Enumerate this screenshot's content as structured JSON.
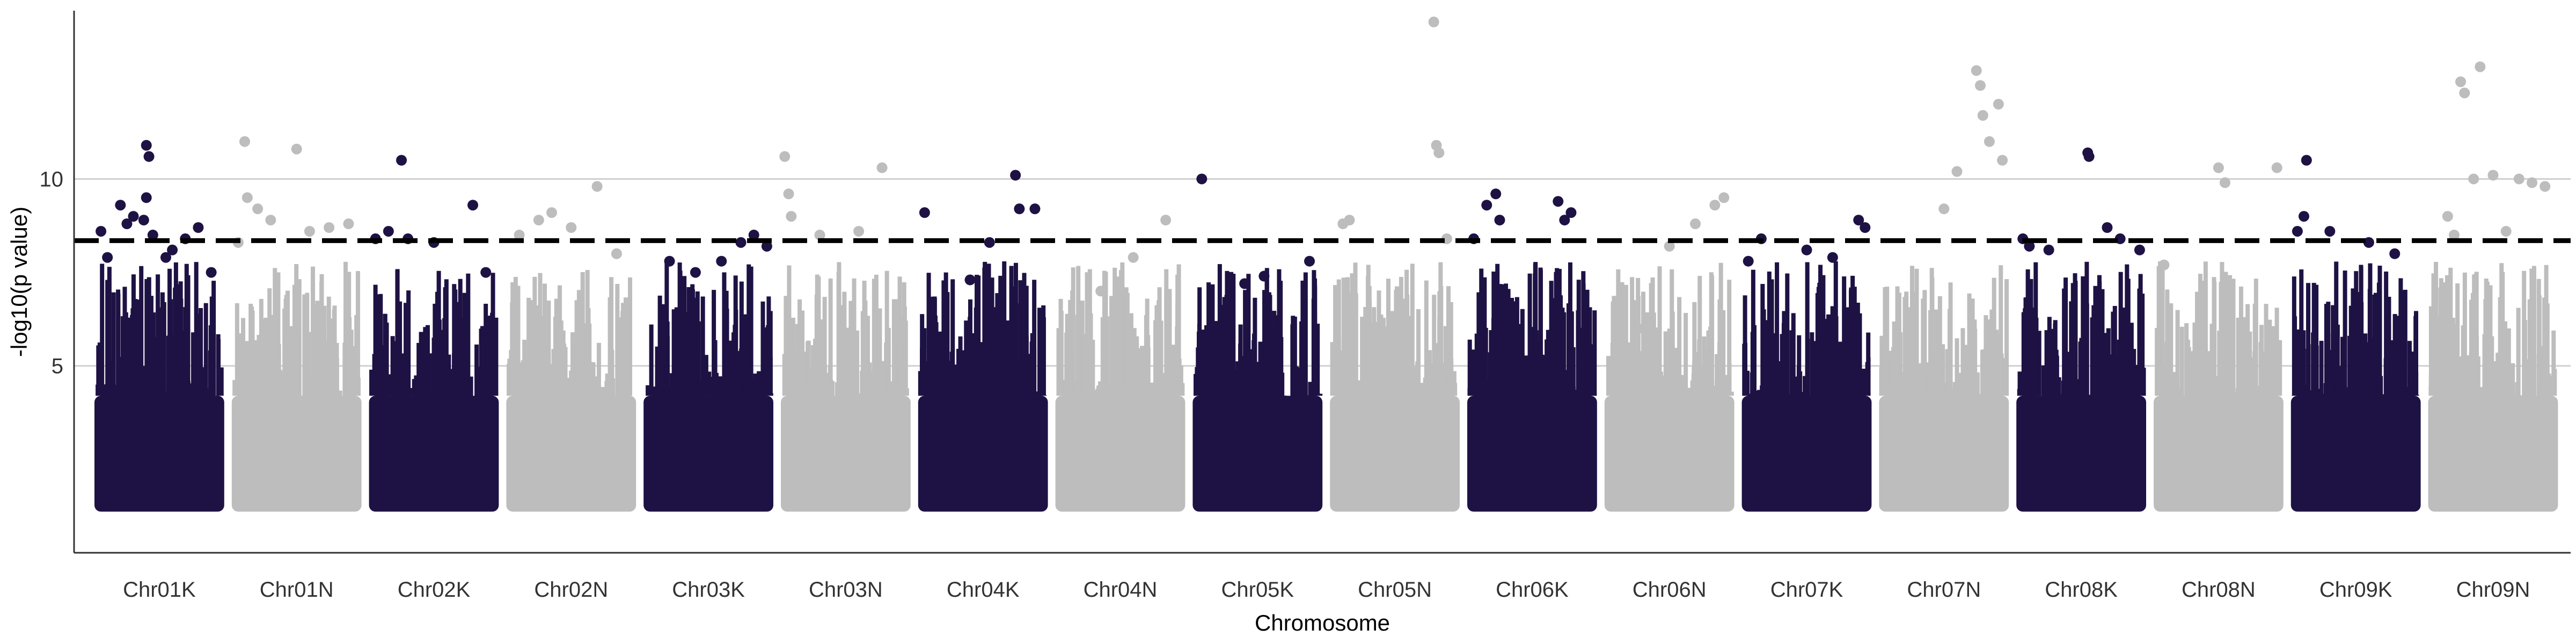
{
  "chart_data": {
    "type": "scatter",
    "title": "",
    "xlabel": "Chromosome",
    "ylabel": "-log10(p value)",
    "ylim": [
      0,
      14.5
    ],
    "yticks": [
      5,
      10
    ],
    "grid": "horizontal",
    "threshold": 8.35,
    "colors": {
      "dark": "#1e1244",
      "light": "#bdbdbd",
      "threshold": "#000000",
      "grid": "#d0d0d0"
    },
    "categories": [
      "Chr01K",
      "Chr01N",
      "Chr02K",
      "Chr02N",
      "Chr03K",
      "Chr03N",
      "Chr04K",
      "Chr04N",
      "Chr05K",
      "Chr05N",
      "Chr06K",
      "Chr06N",
      "Chr07K",
      "Chr07N",
      "Chr08K",
      "Chr08N",
      "Chr09K",
      "Chr09N"
    ],
    "series": [
      {
        "chromosome": "Chr01K",
        "color": "dark",
        "points": [
          [
            0.05,
            8.6
          ],
          [
            0.1,
            7.9
          ],
          [
            0.2,
            9.3
          ],
          [
            0.25,
            8.8
          ],
          [
            0.3,
            9.0
          ],
          [
            0.38,
            8.9
          ],
          [
            0.4,
            10.9
          ],
          [
            0.42,
            10.6
          ],
          [
            0.4,
            9.5
          ],
          [
            0.45,
            8.5
          ],
          [
            0.55,
            7.9
          ],
          [
            0.6,
            8.1
          ],
          [
            0.7,
            8.4
          ],
          [
            0.8,
            8.7
          ],
          [
            0.9,
            7.5
          ]
        ]
      },
      {
        "chromosome": "Chr01N",
        "color": "light",
        "points": [
          [
            0.05,
            8.3
          ],
          [
            0.1,
            11.0
          ],
          [
            0.12,
            9.5
          ],
          [
            0.2,
            9.2
          ],
          [
            0.3,
            8.9
          ],
          [
            0.5,
            10.8
          ],
          [
            0.6,
            8.6
          ],
          [
            0.75,
            8.7
          ],
          [
            0.9,
            8.8
          ]
        ]
      },
      {
        "chromosome": "Chr02K",
        "color": "dark",
        "points": [
          [
            0.05,
            8.4
          ],
          [
            0.15,
            8.6
          ],
          [
            0.25,
            10.5
          ],
          [
            0.3,
            8.4
          ],
          [
            0.5,
            8.3
          ],
          [
            0.8,
            9.3
          ],
          [
            0.9,
            7.5
          ]
        ]
      },
      {
        "chromosome": "Chr02N",
        "color": "light",
        "points": [
          [
            0.1,
            8.5
          ],
          [
            0.25,
            8.9
          ],
          [
            0.35,
            9.1
          ],
          [
            0.5,
            8.7
          ],
          [
            0.7,
            9.8
          ],
          [
            0.85,
            8.0
          ]
        ]
      },
      {
        "chromosome": "Chr03K",
        "color": "dark",
        "points": [
          [
            0.2,
            7.8
          ],
          [
            0.4,
            7.5
          ],
          [
            0.6,
            7.8
          ],
          [
            0.75,
            8.3
          ],
          [
            0.85,
            8.5
          ],
          [
            0.95,
            8.2
          ]
        ]
      },
      {
        "chromosome": "Chr03N",
        "color": "light",
        "points": [
          [
            0.03,
            10.6
          ],
          [
            0.06,
            9.6
          ],
          [
            0.08,
            9.0
          ],
          [
            0.3,
            8.5
          ],
          [
            0.6,
            8.6
          ],
          [
            0.78,
            10.3
          ]
        ]
      },
      {
        "chromosome": "Chr04K",
        "color": "dark",
        "points": [
          [
            0.05,
            9.1
          ],
          [
            0.4,
            7.3
          ],
          [
            0.55,
            8.3
          ],
          [
            0.75,
            10.1
          ],
          [
            0.78,
            9.2
          ],
          [
            0.9,
            9.2
          ]
        ]
      },
      {
        "chromosome": "Chr04N",
        "color": "light",
        "points": [
          [
            0.35,
            7.0
          ],
          [
            0.6,
            7.9
          ],
          [
            0.85,
            8.9
          ]
        ]
      },
      {
        "chromosome": "Chr05K",
        "color": "dark",
        "points": [
          [
            0.07,
            10.0
          ],
          [
            0.4,
            7.2
          ],
          [
            0.55,
            7.4
          ],
          [
            0.9,
            7.8
          ]
        ]
      },
      {
        "chromosome": "Chr05N",
        "color": "light",
        "points": [
          [
            0.1,
            8.8
          ],
          [
            0.15,
            8.9
          ],
          [
            0.8,
            14.2
          ],
          [
            0.82,
            10.9
          ],
          [
            0.84,
            10.7
          ],
          [
            0.9,
            8.4
          ]
        ]
      },
      {
        "chromosome": "Chr06K",
        "color": "dark",
        "points": [
          [
            0.05,
            8.4
          ],
          [
            0.15,
            9.3
          ],
          [
            0.22,
            9.6
          ],
          [
            0.25,
            8.9
          ],
          [
            0.7,
            9.4
          ],
          [
            0.75,
            8.9
          ],
          [
            0.8,
            9.1
          ]
        ]
      },
      {
        "chromosome": "Chr06N",
        "color": "light",
        "points": [
          [
            0.3,
            6.0
          ],
          [
            0.5,
            8.2
          ],
          [
            0.7,
            8.8
          ],
          [
            0.85,
            9.3
          ],
          [
            0.92,
            9.5
          ]
        ]
      },
      {
        "chromosome": "Chr07K",
        "color": "dark",
        "points": [
          [
            0.05,
            7.8
          ],
          [
            0.15,
            8.4
          ],
          [
            0.5,
            8.1
          ],
          [
            0.7,
            7.9
          ],
          [
            0.9,
            8.9
          ],
          [
            0.95,
            8.7
          ]
        ]
      },
      {
        "chromosome": "Chr07N",
        "color": "light",
        "points": [
          [
            0.5,
            9.2
          ],
          [
            0.6,
            10.2
          ],
          [
            0.75,
            12.9
          ],
          [
            0.78,
            12.5
          ],
          [
            0.8,
            11.7
          ],
          [
            0.85,
            11.0
          ],
          [
            0.92,
            12.0
          ],
          [
            0.95,
            10.5
          ]
        ]
      },
      {
        "chromosome": "Chr08K",
        "color": "dark",
        "points": [
          [
            0.05,
            8.4
          ],
          [
            0.1,
            8.2
          ],
          [
            0.25,
            8.1
          ],
          [
            0.55,
            10.7
          ],
          [
            0.56,
            10.6
          ],
          [
            0.7,
            8.7
          ],
          [
            0.8,
            8.4
          ],
          [
            0.95,
            8.1
          ]
        ]
      },
      {
        "chromosome": "Chr08N",
        "color": "light",
        "points": [
          [
            0.08,
            7.7
          ],
          [
            0.5,
            10.3
          ],
          [
            0.55,
            9.9
          ],
          [
            0.95,
            10.3
          ]
        ]
      },
      {
        "chromosome": "Chr09K",
        "color": "dark",
        "points": [
          [
            0.05,
            8.6
          ],
          [
            0.1,
            9.0
          ],
          [
            0.12,
            10.5
          ],
          [
            0.3,
            8.6
          ],
          [
            0.6,
            8.3
          ],
          [
            0.8,
            8.0
          ]
        ]
      },
      {
        "chromosome": "Chr09N",
        "color": "light",
        "points": [
          [
            0.15,
            9.0
          ],
          [
            0.2,
            8.5
          ],
          [
            0.25,
            12.6
          ],
          [
            0.28,
            12.3
          ],
          [
            0.35,
            10.0
          ],
          [
            0.4,
            13.0
          ],
          [
            0.5,
            10.1
          ],
          [
            0.6,
            8.6
          ],
          [
            0.7,
            10.0
          ],
          [
            0.8,
            9.9
          ],
          [
            0.9,
            9.8
          ]
        ]
      }
    ]
  }
}
